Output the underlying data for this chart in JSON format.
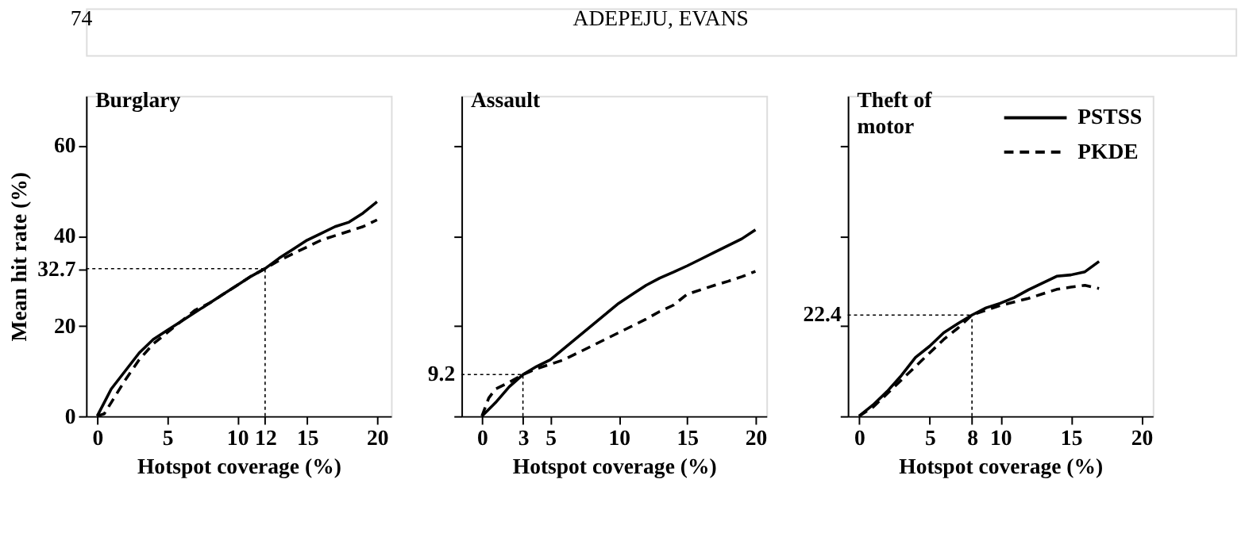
{
  "chart_data": [
    {
      "type": "other",
      "annotations": [
        "74",
        "ADEPEJU, EVANS"
      ]
    },
    {
      "type": "line",
      "title": "Burglary",
      "xlabel": "Hotspot coverage (%)",
      "ylabel": "Mean hit rate (%)",
      "xlim": [
        -0.8,
        21
      ],
      "ylim": [
        0,
        71
      ],
      "xticks": [
        0,
        5,
        10,
        12,
        15,
        20
      ],
      "yticks": [
        0,
        20,
        32.7,
        40,
        60
      ],
      "grid": false,
      "legend": false,
      "marker": "none",
      "ref_lines": [
        {
          "axis": "x",
          "value": 12,
          "line_style": "dotted"
        },
        {
          "axis": "y",
          "value": 32.7,
          "line_style": "dotted"
        }
      ],
      "series": [
        {
          "color": "#000000",
          "line_style": "solid",
          "x": [
            0,
            0.5,
            1,
            2,
            3,
            4,
            5,
            6,
            7,
            8,
            9,
            10,
            11,
            12,
            13,
            14,
            15,
            16,
            17,
            18,
            19,
            20
          ],
          "values": [
            0,
            3,
            6,
            10,
            14,
            17,
            19,
            21,
            23,
            25,
            27,
            29,
            31,
            32.7,
            35,
            37,
            39,
            40.5,
            42,
            43,
            45,
            47.5
          ]
        },
        {
          "color": "#000000",
          "line_style": "dashed",
          "x": [
            0,
            0.5,
            1,
            2,
            3,
            4,
            5,
            6,
            7,
            8,
            9,
            10,
            11,
            12,
            13,
            14,
            15,
            16,
            17,
            18,
            19,
            20
          ],
          "values": [
            0,
            0.5,
            3,
            8,
            12.5,
            16,
            18.5,
            21,
            23.5,
            25,
            27,
            29,
            31,
            32.7,
            34.5,
            36,
            37.5,
            39,
            40,
            41,
            42,
            43.5
          ]
        }
      ]
    },
    {
      "type": "line",
      "title": "Assault",
      "xlabel": "Hotspot coverage (%)",
      "xlim": [
        -1.5,
        20.8
      ],
      "ylim": [
        0,
        71
      ],
      "xticks": [
        0,
        3,
        5,
        10,
        15,
        20
      ],
      "yticks": [
        0,
        20,
        40,
        60
      ],
      "tick_labels": "x",
      "grid": false,
      "legend": false,
      "marker": "none",
      "ref_lines": [
        {
          "axis": "x",
          "value": 3,
          "line_style": "dotted"
        },
        {
          "axis": "y",
          "value": 9.2,
          "label": "9.2",
          "line_style": "dotted"
        }
      ],
      "series": [
        {
          "color": "#000000",
          "line_style": "solid",
          "x": [
            0,
            1,
            2,
            3,
            4,
            5,
            6,
            7,
            8,
            9,
            10,
            11,
            12,
            13,
            14,
            15,
            16,
            17,
            18,
            19,
            20
          ],
          "values": [
            0,
            3,
            6.5,
            9.2,
            11,
            12.5,
            15,
            17.5,
            20,
            22.5,
            25,
            27,
            29,
            30.6,
            31.9,
            33.3,
            34.8,
            36.3,
            37.8,
            39.3,
            41.3
          ]
        },
        {
          "color": "#000000",
          "line_style": "dashed",
          "x": [
            0,
            0.5,
            1,
            2,
            3,
            4,
            5,
            6,
            7,
            8,
            9,
            10,
            11,
            12,
            13,
            14,
            15,
            16,
            17,
            18,
            19,
            20
          ],
          "values": [
            0,
            4,
            6,
            7.5,
            9.2,
            10.5,
            11.5,
            12.5,
            14,
            15.5,
            17,
            18.5,
            20,
            21.5,
            23.2,
            24.6,
            27,
            28,
            29,
            29.9,
            30.9,
            32.1
          ]
        }
      ]
    },
    {
      "type": "line",
      "title": "Theft of motor",
      "xlabel": "Hotspot coverage (%)",
      "xlim": [
        -0.8,
        20.8
      ],
      "ylim": [
        0,
        71
      ],
      "xticks": [
        0,
        5,
        8,
        10,
        15,
        20
      ],
      "yticks": [
        0,
        20,
        40,
        60
      ],
      "tick_labels": "x",
      "grid": false,
      "legend": "top right",
      "marker": "none",
      "ref_lines": [
        {
          "axis": "x",
          "value": 8,
          "line_style": "dotted"
        },
        {
          "axis": "y",
          "value": 22.4,
          "label": "22.4",
          "line_style": "dotted"
        }
      ],
      "series": [
        {
          "name": "PSTSS",
          "color": "#000000",
          "line_style": "solid",
          "x": [
            0,
            1,
            2,
            3,
            4,
            5,
            6,
            7,
            8,
            9,
            10,
            11,
            12,
            13,
            14,
            15,
            16,
            17
          ],
          "values": [
            0,
            2.5,
            5.5,
            9,
            13,
            15.5,
            18.5,
            20.5,
            22.4,
            24,
            25,
            26.3,
            28,
            29.5,
            31,
            31.3,
            32,
            34.3
          ]
        },
        {
          "name": "PKDE",
          "color": "#000000",
          "line_style": "dashed",
          "x": [
            0,
            1,
            2,
            3,
            4,
            5,
            6,
            7,
            8,
            9,
            10,
            11,
            12,
            13,
            14,
            15,
            16,
            17
          ],
          "values": [
            0,
            2,
            5,
            8,
            11,
            14,
            17,
            19.5,
            22.4,
            23.5,
            24.5,
            25.3,
            26.1,
            27.1,
            28.1,
            28.6,
            29,
            28.3
          ]
        }
      ]
    }
  ]
}
